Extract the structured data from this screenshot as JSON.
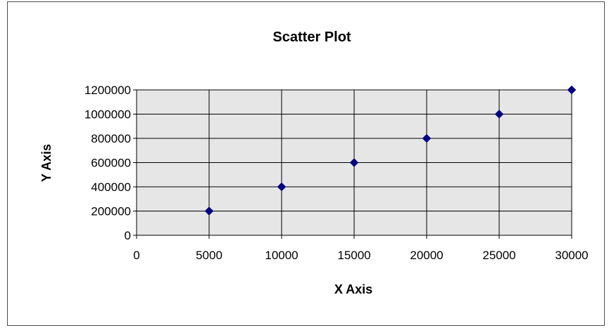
{
  "chart_data": {
    "type": "scatter",
    "title": "Scatter Plot",
    "xlabel": "X Axis",
    "ylabel": "Y Axis",
    "xlim": [
      0,
      30000
    ],
    "ylim": [
      0,
      1200000
    ],
    "x_ticks": [
      0,
      5000,
      10000,
      15000,
      20000,
      25000,
      30000
    ],
    "y_ticks": [
      0,
      200000,
      400000,
      600000,
      800000,
      1000000,
      1200000
    ],
    "grid": true,
    "legend": "none",
    "plot_background": "#e6e6e6",
    "marker": "diamond",
    "marker_color": "#000080",
    "series": [
      {
        "points": [
          {
            "x": 5000,
            "y": 200000
          },
          {
            "x": 10000,
            "y": 400000
          },
          {
            "x": 15000,
            "y": 600000
          },
          {
            "x": 20000,
            "y": 800000
          },
          {
            "x": 25000,
            "y": 1000000
          },
          {
            "x": 30000,
            "y": 1200000
          }
        ]
      }
    ]
  }
}
